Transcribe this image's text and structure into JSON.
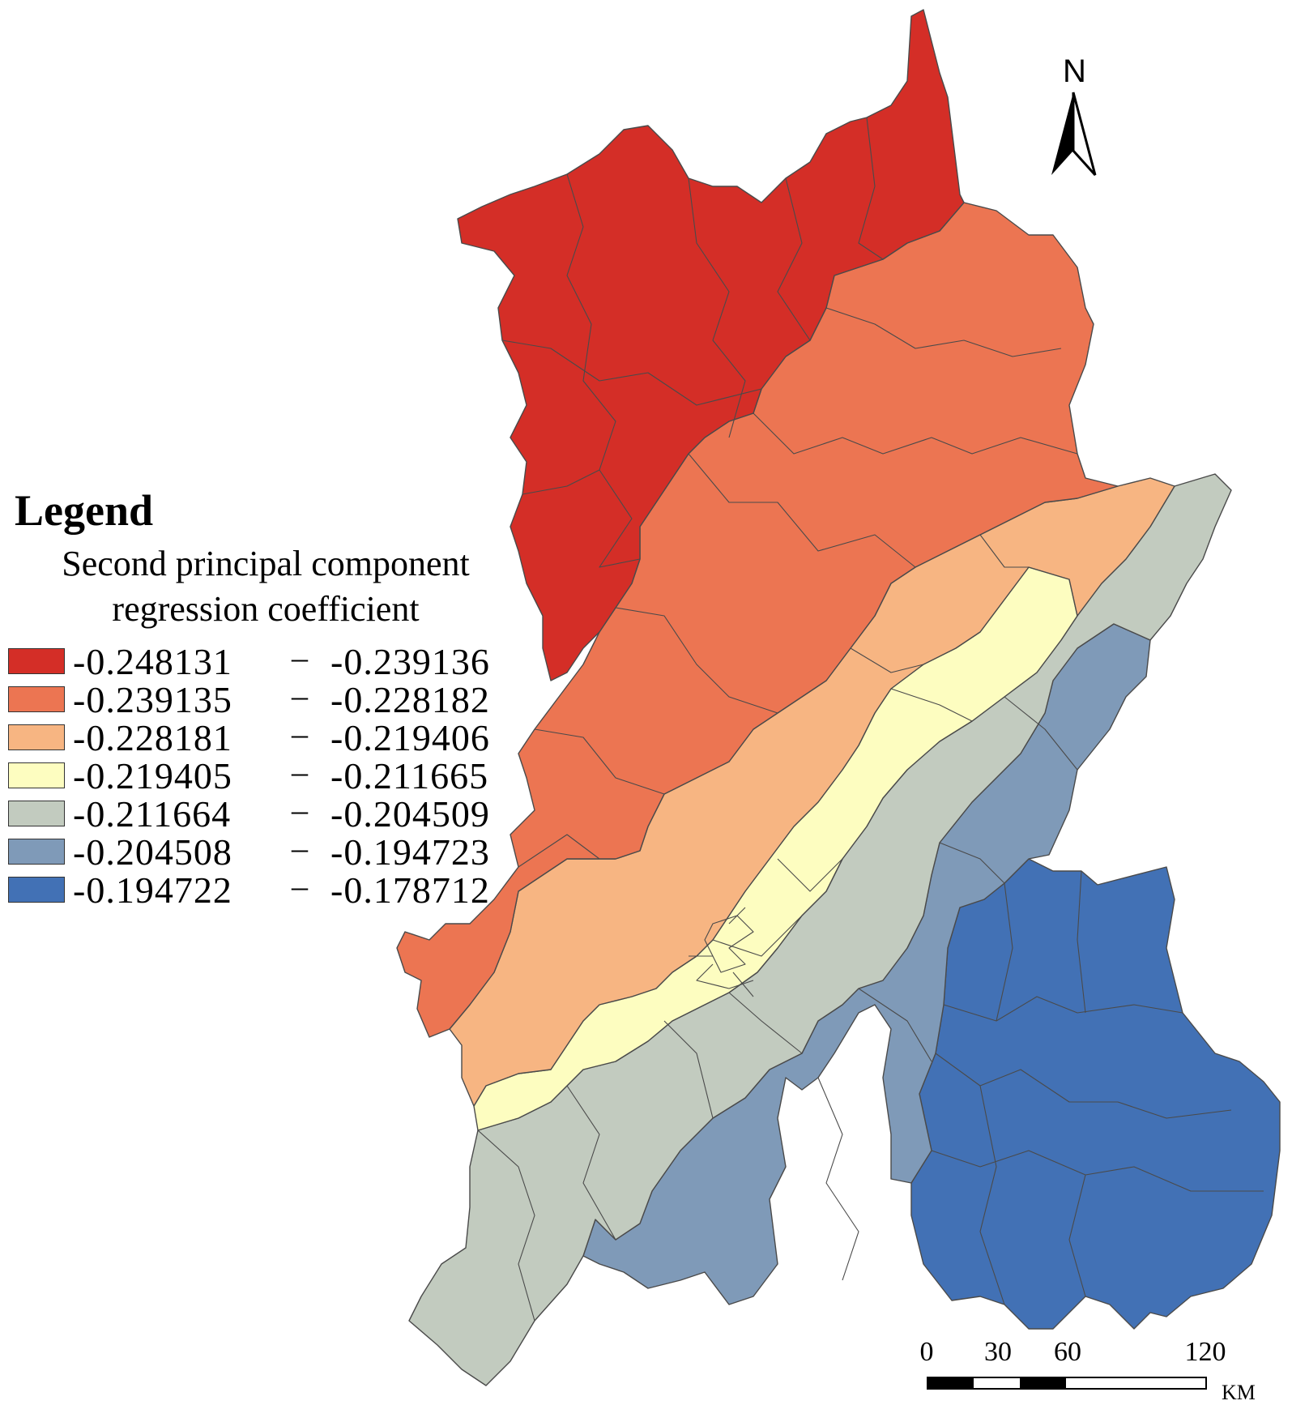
{
  "legend": {
    "title": "Legend",
    "subtitle_line1": "Second principal component",
    "subtitle_line2": "regression coefficient",
    "classes": [
      {
        "low": "-0.248131",
        "high": "-0.239136",
        "color": "#d42e27"
      },
      {
        "low": "-0.239135",
        "high": "-0.228182",
        "color": "#ec7552"
      },
      {
        "low": "-0.228181",
        "high": "-0.219406",
        "color": "#f7b582"
      },
      {
        "low": "-0.219405",
        "high": "-0.211665",
        "color": "#fdfdc0"
      },
      {
        "low": "-0.211664",
        "high": "-0.204509",
        "color": "#c2cbbf"
      },
      {
        "low": "-0.204508",
        "high": "-0.194723",
        "color": "#7f9ab8"
      },
      {
        "low": "-0.194722",
        "high": "-0.178712",
        "color": "#4271b5"
      }
    ],
    "separator": "–"
  },
  "north_arrow": {
    "label": "N"
  },
  "scale_bar": {
    "ticks": [
      "0",
      "30",
      "60",
      "120"
    ],
    "unit": "KM"
  }
}
